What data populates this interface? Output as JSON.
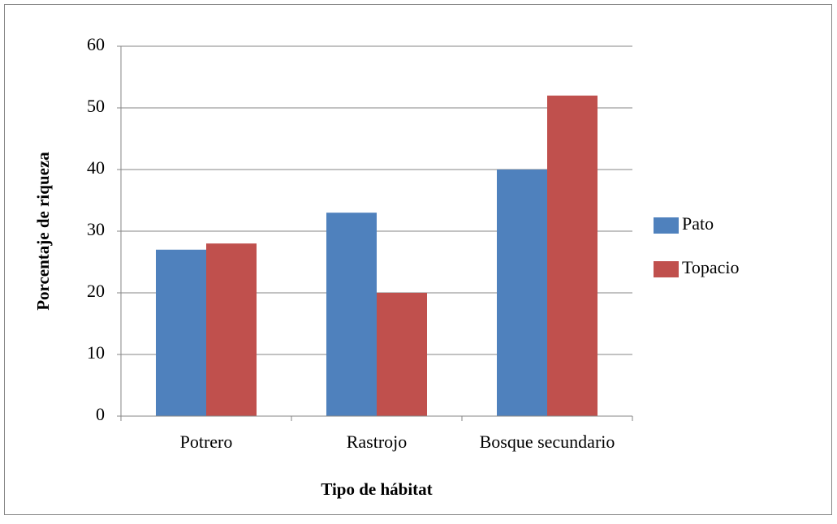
{
  "chart_data": {
    "type": "bar",
    "x_label": "Tipo de hábitat",
    "y_label": "Porcentaje de riqueza",
    "categories": [
      "Potrero",
      "Rastrojo",
      "Bosque secundario"
    ],
    "series": [
      {
        "name": "Pato",
        "color": "#4f81bd",
        "values": [
          27,
          33,
          40
        ]
      },
      {
        "name": "Topacio",
        "color": "#c0504d",
        "values": [
          28,
          20,
          52
        ]
      }
    ],
    "ylim": [
      0,
      60
    ],
    "yticks": [
      0,
      10,
      20,
      30,
      40,
      50,
      60
    ],
    "grid": true,
    "legend": "right"
  }
}
